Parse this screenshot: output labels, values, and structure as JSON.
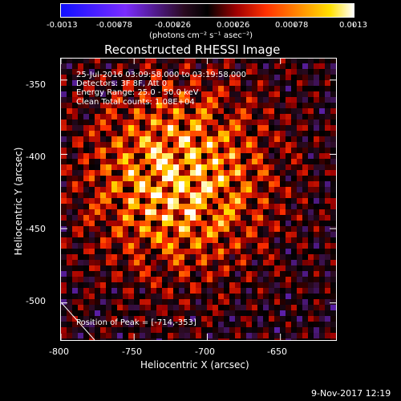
{
  "colorbar": {
    "ticks": [
      "-0.0013",
      "-0.00078",
      "-0.00026",
      "0.00026",
      "0.00078",
      "0.0013"
    ],
    "unit_label": "(photons cm⁻² s⁻¹ asec⁻²)"
  },
  "chart_data": {
    "type": "heatmap",
    "title": "Reconstructed RHESSI Image",
    "xlabel": "Heliocentric X (arcsec)",
    "ylabel": "Heliocentric Y (arcsec)",
    "xlim": [
      -800,
      -612
    ],
    "ylim": [
      -525,
      -335
    ],
    "x_ticks": [
      "-800",
      "-750",
      "-700",
      "-650"
    ],
    "y_ticks": [
      "-350",
      "-400",
      "-450",
      "-500"
    ],
    "value_range": [
      -0.0013,
      0.0013
    ],
    "colormap": [
      "#1010ff",
      "#7a2cff",
      "#2a0a20",
      "#000000",
      "#a00000",
      "#ff3000",
      "#ff9000",
      "#ffe000",
      "#ffffff"
    ],
    "annotations": {
      "time_range": "25-Jul-2016 03:09:58.000 to 03:19:58.000",
      "detectors": "Detectors: 3F 8F, Att 0",
      "energy_range": "Energy Range: 25.0 - 50.0 keV",
      "clean": "Clean    Total counts: 1.08E+04",
      "peak": "Position of Peak = [-714,-353]"
    },
    "peak_position": [
      -714,
      -353
    ]
  },
  "footer": {
    "timestamp": "9-Nov-2017 12:19"
  }
}
